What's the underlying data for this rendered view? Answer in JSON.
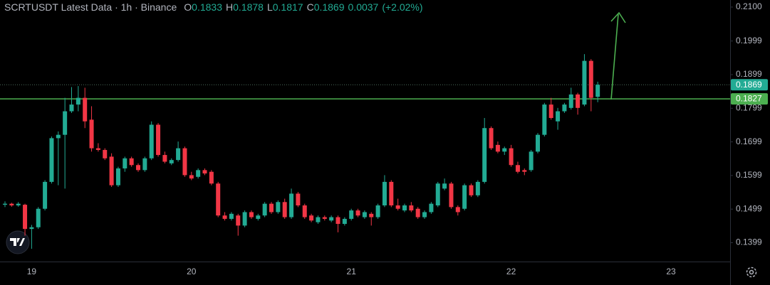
{
  "chart_data": {
    "type": "candlestick",
    "title": "SCRTUSDT Latest Data · 1h · Binance",
    "ohlc_legend": [
      {
        "label": "O",
        "value": 0.1833
      },
      {
        "label": "H",
        "value": 0.1878
      },
      {
        "label": "L",
        "value": 0.1817
      },
      {
        "label": "C",
        "value": 0.1869
      }
    ],
    "change": 0.0037,
    "change_pct": {
      "value": 2.02,
      "label": "(+2.02%)"
    },
    "categories": [
      null,
      null,
      null,
      null,
      "19",
      null,
      null,
      null,
      null,
      null,
      null,
      null,
      null,
      null,
      null,
      null,
      null,
      null,
      null,
      null,
      null,
      null,
      null,
      null,
      null,
      null,
      null,
      null,
      "20",
      null,
      null,
      null,
      null,
      null,
      null,
      null,
      null,
      null,
      null,
      null,
      null,
      null,
      null,
      null,
      null,
      null,
      null,
      null,
      null,
      null,
      null,
      null,
      "21",
      null,
      null,
      null,
      null,
      null,
      null,
      null,
      null,
      null,
      null,
      null,
      null,
      null,
      null,
      null,
      null,
      null,
      null,
      null,
      null,
      null,
      null,
      null,
      "22",
      null,
      null,
      null,
      null,
      null,
      null,
      null,
      null,
      null,
      null,
      null,
      null,
      null,
      null,
      null,
      null,
      null,
      null,
      null,
      null,
      null,
      null,
      null,
      "23"
    ],
    "open": [
      0.1512,
      0.1515,
      0.151,
      0.1512,
      0.144,
      0.1445,
      0.15,
      0.158,
      0.171,
      0.172,
      0.179,
      0.181,
      0.183,
      0.1765,
      0.168,
      0.1675,
      0.1655,
      0.157,
      0.162,
      0.165,
      0.163,
      0.1615,
      0.165,
      0.175,
      0.166,
      0.1635,
      0.1645,
      0.168,
      0.16,
      0.1595,
      0.1615,
      0.161,
      0.1575,
      0.148,
      0.147,
      0.148,
      0.145,
      0.149,
      0.147,
      0.148,
      0.1515,
      0.149,
      0.152,
      0.1475,
      0.1545,
      0.151,
      0.148,
      0.146,
      0.1475,
      0.1465,
      0.1475,
      0.1455,
      0.147,
      0.1495,
      0.1475,
      0.1485,
      0.1475,
      0.151,
      0.158,
      0.151,
      0.1495,
      0.151,
      0.15,
      0.1475,
      0.149,
      0.151,
      0.156,
      0.1575,
      0.1505,
      0.15,
      0.157,
      0.154,
      0.158,
      0.174,
      0.169,
      0.167,
      0.168,
      0.163,
      0.1615,
      0.1615,
      0.167,
      0.172,
      0.181,
      0.176,
      0.179,
      0.18,
      0.184,
      0.181,
      0.194,
      0.1833,
      null,
      null,
      null,
      null,
      null,
      null,
      null,
      null,
      null,
      null,
      null
    ],
    "high": [
      0.1522,
      0.1518,
      0.152,
      0.1515,
      0.1452,
      0.1505,
      0.1585,
      0.1715,
      0.173,
      0.183,
      0.1862,
      0.1865,
      0.186,
      0.1805,
      0.1695,
      0.168,
      0.1665,
      0.1625,
      0.1655,
      0.1655,
      0.1635,
      0.1655,
      0.176,
      0.1755,
      0.167,
      0.165,
      0.17,
      0.1685,
      0.161,
      0.162,
      0.162,
      0.1615,
      0.158,
      0.149,
      0.149,
      0.1485,
      0.1495,
      0.1495,
      0.1485,
      0.152,
      0.152,
      0.1525,
      0.153,
      0.156,
      0.155,
      0.1515,
      0.1485,
      0.148,
      0.148,
      0.148,
      0.148,
      0.1475,
      0.15,
      0.15,
      0.1495,
      0.149,
      0.1515,
      0.16,
      0.1585,
      0.153,
      0.1515,
      0.152,
      0.1505,
      0.1495,
      0.152,
      0.158,
      0.159,
      0.158,
      0.151,
      0.1575,
      0.1575,
      0.1585,
      0.177,
      0.1745,
      0.17,
      0.1685,
      0.169,
      0.164,
      0.162,
      0.1675,
      0.1725,
      0.1815,
      0.183,
      0.18,
      0.1815,
      0.186,
      0.1845,
      0.196,
      0.1945,
      0.1878,
      null,
      null,
      null,
      null,
      null,
      null,
      null,
      null,
      null,
      null,
      null
    ],
    "low": [
      0.1505,
      0.1506,
      0.1506,
      0.142,
      0.1381,
      0.144,
      0.1495,
      0.1575,
      0.157,
      0.156,
      0.1785,
      0.179,
      0.174,
      0.167,
      0.167,
      0.1645,
      0.1565,
      0.1565,
      0.161,
      0.1625,
      0.161,
      0.161,
      0.1645,
      0.1655,
      0.1635,
      0.163,
      0.164,
      0.1595,
      0.1585,
      0.159,
      0.16,
      0.157,
      0.1475,
      0.1465,
      0.1465,
      0.142,
      0.1445,
      0.147,
      0.1465,
      0.1475,
      0.1485,
      0.1485,
      0.147,
      0.147,
      0.1505,
      0.147,
      0.146,
      0.1455,
      0.1465,
      0.146,
      0.143,
      0.145,
      0.1465,
      0.1475,
      0.147,
      0.145,
      0.147,
      0.1505,
      0.1505,
      0.1495,
      0.149,
      0.149,
      0.147,
      0.147,
      0.1485,
      0.1505,
      0.1555,
      0.15,
      0.148,
      0.1495,
      0.1535,
      0.1535,
      0.1575,
      0.1675,
      0.1665,
      0.166,
      0.1625,
      0.1605,
      0.16,
      0.161,
      0.1665,
      0.1715,
      0.1765,
      0.1735,
      0.1785,
      0.1795,
      0.178,
      0.1805,
      0.179,
      0.1817,
      null,
      null,
      null,
      null,
      null,
      null,
      null,
      null,
      null,
      null,
      null
    ],
    "close": [
      0.1515,
      0.151,
      0.1515,
      0.144,
      0.1445,
      0.15,
      0.158,
      0.171,
      0.172,
      0.179,
      0.181,
      0.183,
      0.176,
      0.168,
      0.1675,
      0.165,
      0.157,
      0.162,
      0.165,
      0.163,
      0.1615,
      0.165,
      0.175,
      0.166,
      0.164,
      0.1645,
      0.168,
      0.16,
      0.159,
      0.1615,
      0.1605,
      0.1575,
      0.148,
      0.147,
      0.1485,
      0.145,
      0.149,
      0.1475,
      0.148,
      0.1515,
      0.149,
      0.152,
      0.1475,
      0.1545,
      0.151,
      0.1475,
      0.1465,
      0.1475,
      0.147,
      0.1475,
      0.1455,
      0.147,
      0.1495,
      0.148,
      0.149,
      0.1475,
      0.151,
      0.158,
      0.151,
      0.15,
      0.151,
      0.1495,
      0.1475,
      0.149,
      0.1515,
      0.1575,
      0.1575,
      0.1505,
      0.149,
      0.157,
      0.154,
      0.158,
      0.174,
      0.168,
      0.167,
      0.168,
      0.163,
      0.161,
      0.161,
      0.167,
      0.172,
      0.181,
      0.177,
      0.179,
      0.181,
      0.184,
      0.18,
      0.194,
      0.183,
      0.1869,
      null,
      null,
      null,
      null,
      null,
      null,
      null,
      null,
      null,
      null,
      null
    ],
    "up_color": "#22ab94",
    "down_color": "#f23645",
    "ylim": [
      0.1343,
      0.2121
    ],
    "yticks": [
      {
        "value": 0.21,
        "label": "0.2100"
      },
      0.1999,
      0.1899,
      0.1799,
      0.1699,
      0.1599,
      0.1499,
      0.1399
    ],
    "last_price": 0.1869,
    "level": 0.1827,
    "level_color": "#4caf50",
    "grid": false
  }
}
